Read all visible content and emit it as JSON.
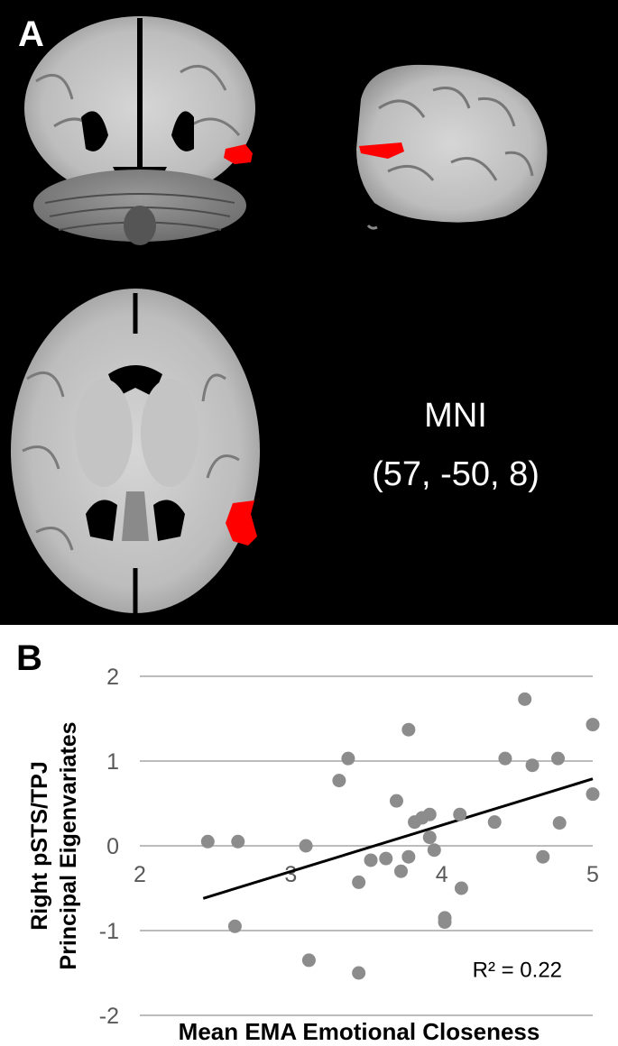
{
  "panel_a": {
    "letter": "A",
    "mni_title": "MNI",
    "mni_coords": "(57, -50, 8)",
    "colors": {
      "background": "#000000",
      "activation": "#ff0000",
      "brain_tissue": "#a8a8a8"
    }
  },
  "panel_b": {
    "letter": "B",
    "chart_data": {
      "type": "scatter",
      "xlabel": "Mean EMA Emotional Closeness",
      "ylabel_lines": [
        "Right pSTS/TPJ",
        "Principal Eigenvariates"
      ],
      "xlim": [
        2,
        5
      ],
      "ylim": [
        -2,
        2
      ],
      "x_ticks": [
        "2",
        "3",
        "4",
        "5"
      ],
      "y_ticks": [
        "2",
        "1",
        "0",
        "-1",
        "-2"
      ],
      "y_tick_values": [
        2,
        1,
        0,
        -1,
        -2
      ],
      "x_tick_values": [
        2,
        3,
        4,
        5
      ],
      "grid": "horizontal",
      "point_color": "#8c8c8c",
      "trendline": {
        "x": [
          2.42,
          5.0
        ],
        "y": [
          -0.62,
          0.79
        ],
        "color": "#000000"
      },
      "r_squared_label": "R² = 0.22",
      "points": [
        [
          2.45,
          0.05
        ],
        [
          2.65,
          0.05
        ],
        [
          2.63,
          -0.95
        ],
        [
          3.1,
          0.0
        ],
        [
          3.12,
          -1.35
        ],
        [
          3.32,
          0.77
        ],
        [
          3.38,
          1.03
        ],
        [
          3.45,
          -0.43
        ],
        [
          3.45,
          -1.5
        ],
        [
          3.53,
          -0.17
        ],
        [
          3.63,
          -0.15
        ],
        [
          3.7,
          0.53
        ],
        [
          3.73,
          -0.3
        ],
        [
          3.78,
          -0.13
        ],
        [
          3.78,
          1.37
        ],
        [
          3.82,
          0.28
        ],
        [
          3.87,
          0.33
        ],
        [
          3.92,
          0.37
        ],
        [
          3.92,
          0.1
        ],
        [
          3.95,
          -0.05
        ],
        [
          4.02,
          -0.85
        ],
        [
          4.02,
          -0.9
        ],
        [
          4.12,
          0.37
        ],
        [
          4.13,
          -0.5
        ],
        [
          4.35,
          0.28
        ],
        [
          4.42,
          1.03
        ],
        [
          4.55,
          1.73
        ],
        [
          4.6,
          0.95
        ],
        [
          4.67,
          -0.13
        ],
        [
          4.77,
          1.03
        ],
        [
          4.78,
          0.27
        ],
        [
          5.0,
          1.43
        ],
        [
          5.0,
          0.61
        ]
      ]
    }
  }
}
